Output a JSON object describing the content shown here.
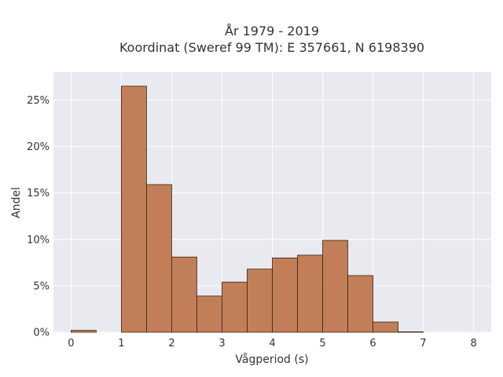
{
  "chart_data": {
    "type": "bar",
    "title": "År 1979 - 2019",
    "subtitle": "Koordinat (Sweref 99 TM): E 357661, N 6198390",
    "xlabel": "Vågperiod (s)",
    "ylabel": "Andel",
    "xlim": [
      -0.35,
      8.35
    ],
    "ylim": [
      0,
      0.28
    ],
    "x_ticks": [
      0,
      1,
      2,
      3,
      4,
      5,
      6,
      7,
      8
    ],
    "x_tick_labels": [
      "0",
      "1",
      "2",
      "3",
      "4",
      "5",
      "6",
      "7",
      "8"
    ],
    "y_ticks": [
      0,
      0.05,
      0.1,
      0.15,
      0.2,
      0.25
    ],
    "y_tick_labels": [
      "0%",
      "5%",
      "10%",
      "15%",
      "20%",
      "25%"
    ],
    "grid": true,
    "bar_color": "#c0784f",
    "bar_edge_color": "#3a2418",
    "bins": [
      {
        "x0": 0.0,
        "x1": 0.5,
        "value": 0.002
      },
      {
        "x0": 0.5,
        "x1": 1.0,
        "value": 0.0
      },
      {
        "x0": 1.0,
        "x1": 1.5,
        "value": 0.265
      },
      {
        "x0": 1.5,
        "x1": 2.0,
        "value": 0.159
      },
      {
        "x0": 2.0,
        "x1": 2.5,
        "value": 0.081
      },
      {
        "x0": 2.5,
        "x1": 3.0,
        "value": 0.039
      },
      {
        "x0": 3.0,
        "x1": 3.5,
        "value": 0.054
      },
      {
        "x0": 3.5,
        "x1": 4.0,
        "value": 0.068
      },
      {
        "x0": 4.0,
        "x1": 4.5,
        "value": 0.08
      },
      {
        "x0": 4.5,
        "x1": 5.0,
        "value": 0.083
      },
      {
        "x0": 5.0,
        "x1": 5.5,
        "value": 0.099
      },
      {
        "x0": 5.5,
        "x1": 6.0,
        "value": 0.061
      },
      {
        "x0": 6.0,
        "x1": 6.5,
        "value": 0.011
      },
      {
        "x0": 6.5,
        "x1": 7.0,
        "value": 0.0005
      }
    ]
  }
}
